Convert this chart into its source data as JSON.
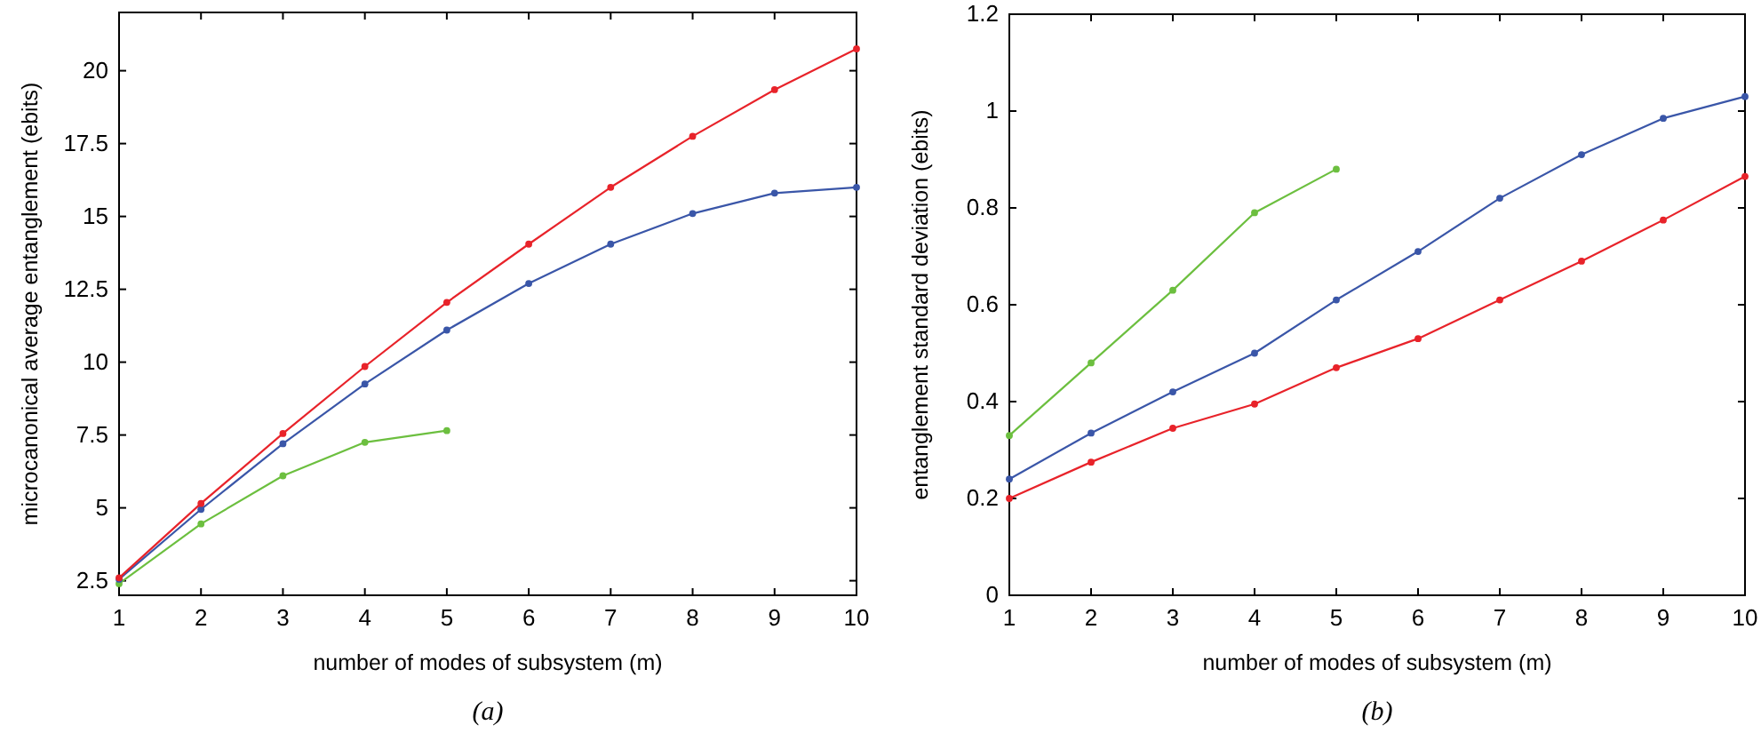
{
  "chart_data": [
    {
      "type": "line",
      "xlabel": "number of modes of subsystem (m)",
      "ylabel": "microcanonical average entanglement (ebits)",
      "annotations": [
        "(a)"
      ],
      "marker": "circle",
      "line_style": "solid",
      "grid": false,
      "x": [
        1,
        2,
        3,
        4,
        5,
        6,
        7,
        8,
        9,
        10
      ],
      "xlim": [
        1,
        10
      ],
      "xticks": [
        1,
        2,
        3,
        4,
        5,
        6,
        7,
        8,
        9,
        10
      ],
      "ylim": [
        2,
        22
      ],
      "yticks": [
        2.5,
        5,
        7.5,
        10,
        12.5,
        15,
        17.5,
        20
      ],
      "series": [
        {
          "color": "#e8232a",
          "values": [
            2.6,
            5.15,
            7.55,
            9.85,
            12.05,
            14.05,
            16.0,
            17.75,
            19.35,
            20.75
          ]
        },
        {
          "color": "#3a56a8",
          "values": [
            2.55,
            4.95,
            7.2,
            9.25,
            11.1,
            12.7,
            14.05,
            15.1,
            15.8,
            16.0
          ]
        },
        {
          "color": "#6cbf3f",
          "values": [
            2.4,
            4.45,
            6.1,
            7.25,
            7.65,
            null,
            null,
            null,
            null,
            null
          ]
        }
      ]
    },
    {
      "type": "line",
      "xlabel": "number of modes of subsystem (m)",
      "ylabel": "entanglement standard deviation (ebits)",
      "annotations": [
        "(b)"
      ],
      "marker": "circle",
      "line_style": "solid",
      "grid": false,
      "x": [
        1,
        2,
        3,
        4,
        5,
        6,
        7,
        8,
        9,
        10
      ],
      "xlim": [
        1,
        10
      ],
      "xticks": [
        1,
        2,
        3,
        4,
        5,
        6,
        7,
        8,
        9,
        10
      ],
      "ylim": [
        0,
        1.2
      ],
      "yticks": [
        0,
        0.2,
        0.4,
        0.6,
        0.8,
        1,
        1.2
      ],
      "series": [
        {
          "color": "#6cbf3f",
          "values": [
            0.33,
            0.48,
            0.63,
            0.79,
            0.88,
            null,
            null,
            null,
            null,
            null
          ]
        },
        {
          "color": "#3a56a8",
          "values": [
            0.24,
            0.335,
            0.42,
            0.5,
            0.61,
            0.71,
            0.82,
            0.91,
            0.985,
            1.03
          ]
        },
        {
          "color": "#e8232a",
          "values": [
            0.2,
            0.275,
            0.345,
            0.395,
            0.47,
            0.53,
            0.61,
            0.69,
            0.775,
            0.865
          ]
        }
      ]
    }
  ]
}
